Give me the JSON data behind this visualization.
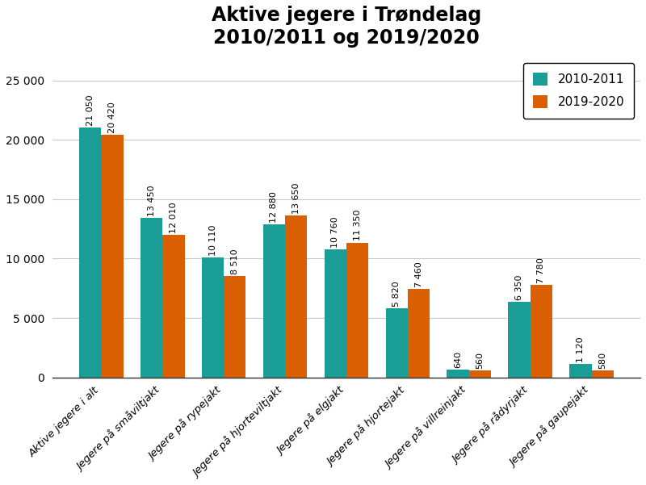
{
  "title": "Aktive jegere i Trøndelag\n2010/2011 og 2019/2020",
  "categories": [
    "Aktive jegere i alt",
    "Jegere på småviltjakt",
    "Jegere på rypejakt",
    "Jegere på hjorteviltjakt",
    "Jegere på elgjakt",
    "Jegere på hjortejakt",
    "Jegere på villreinjakt",
    "Jegere på rådyrjakt",
    "Jegere på gaupejakt"
  ],
  "values_2010": [
    21050,
    13450,
    10110,
    12880,
    10760,
    5820,
    640,
    6350,
    1120
  ],
  "values_2019": [
    20420,
    12010,
    8510,
    13650,
    11350,
    7460,
    560,
    7780,
    580
  ],
  "labels_2010": [
    "21 050",
    "13 450",
    "10 110",
    "12 880",
    "10 760",
    "5 820",
    "640",
    "6 350",
    "1 120"
  ],
  "labels_2019": [
    "20 420",
    "12 010",
    "8 510",
    "13 650",
    "11 350",
    "7 460",
    "560",
    "7 780",
    "580"
  ],
  "color_2010": "#1a9d96",
  "color_2019": "#d95f02",
  "legend_2010": "2010-2011",
  "legend_2019": "2019-2020",
  "ylim": [
    0,
    27000
  ],
  "yticks": [
    0,
    5000,
    10000,
    15000,
    20000,
    25000
  ],
  "ytick_labels": [
    "0",
    "5 000",
    "10 000",
    "15 000",
    "20 000",
    "25 000"
  ],
  "background_color": "#ffffff",
  "title_fontsize": 17,
  "label_fontsize": 8,
  "tick_fontsize": 10,
  "xtick_fontsize": 9.5,
  "legend_fontsize": 11,
  "bar_width": 0.36
}
